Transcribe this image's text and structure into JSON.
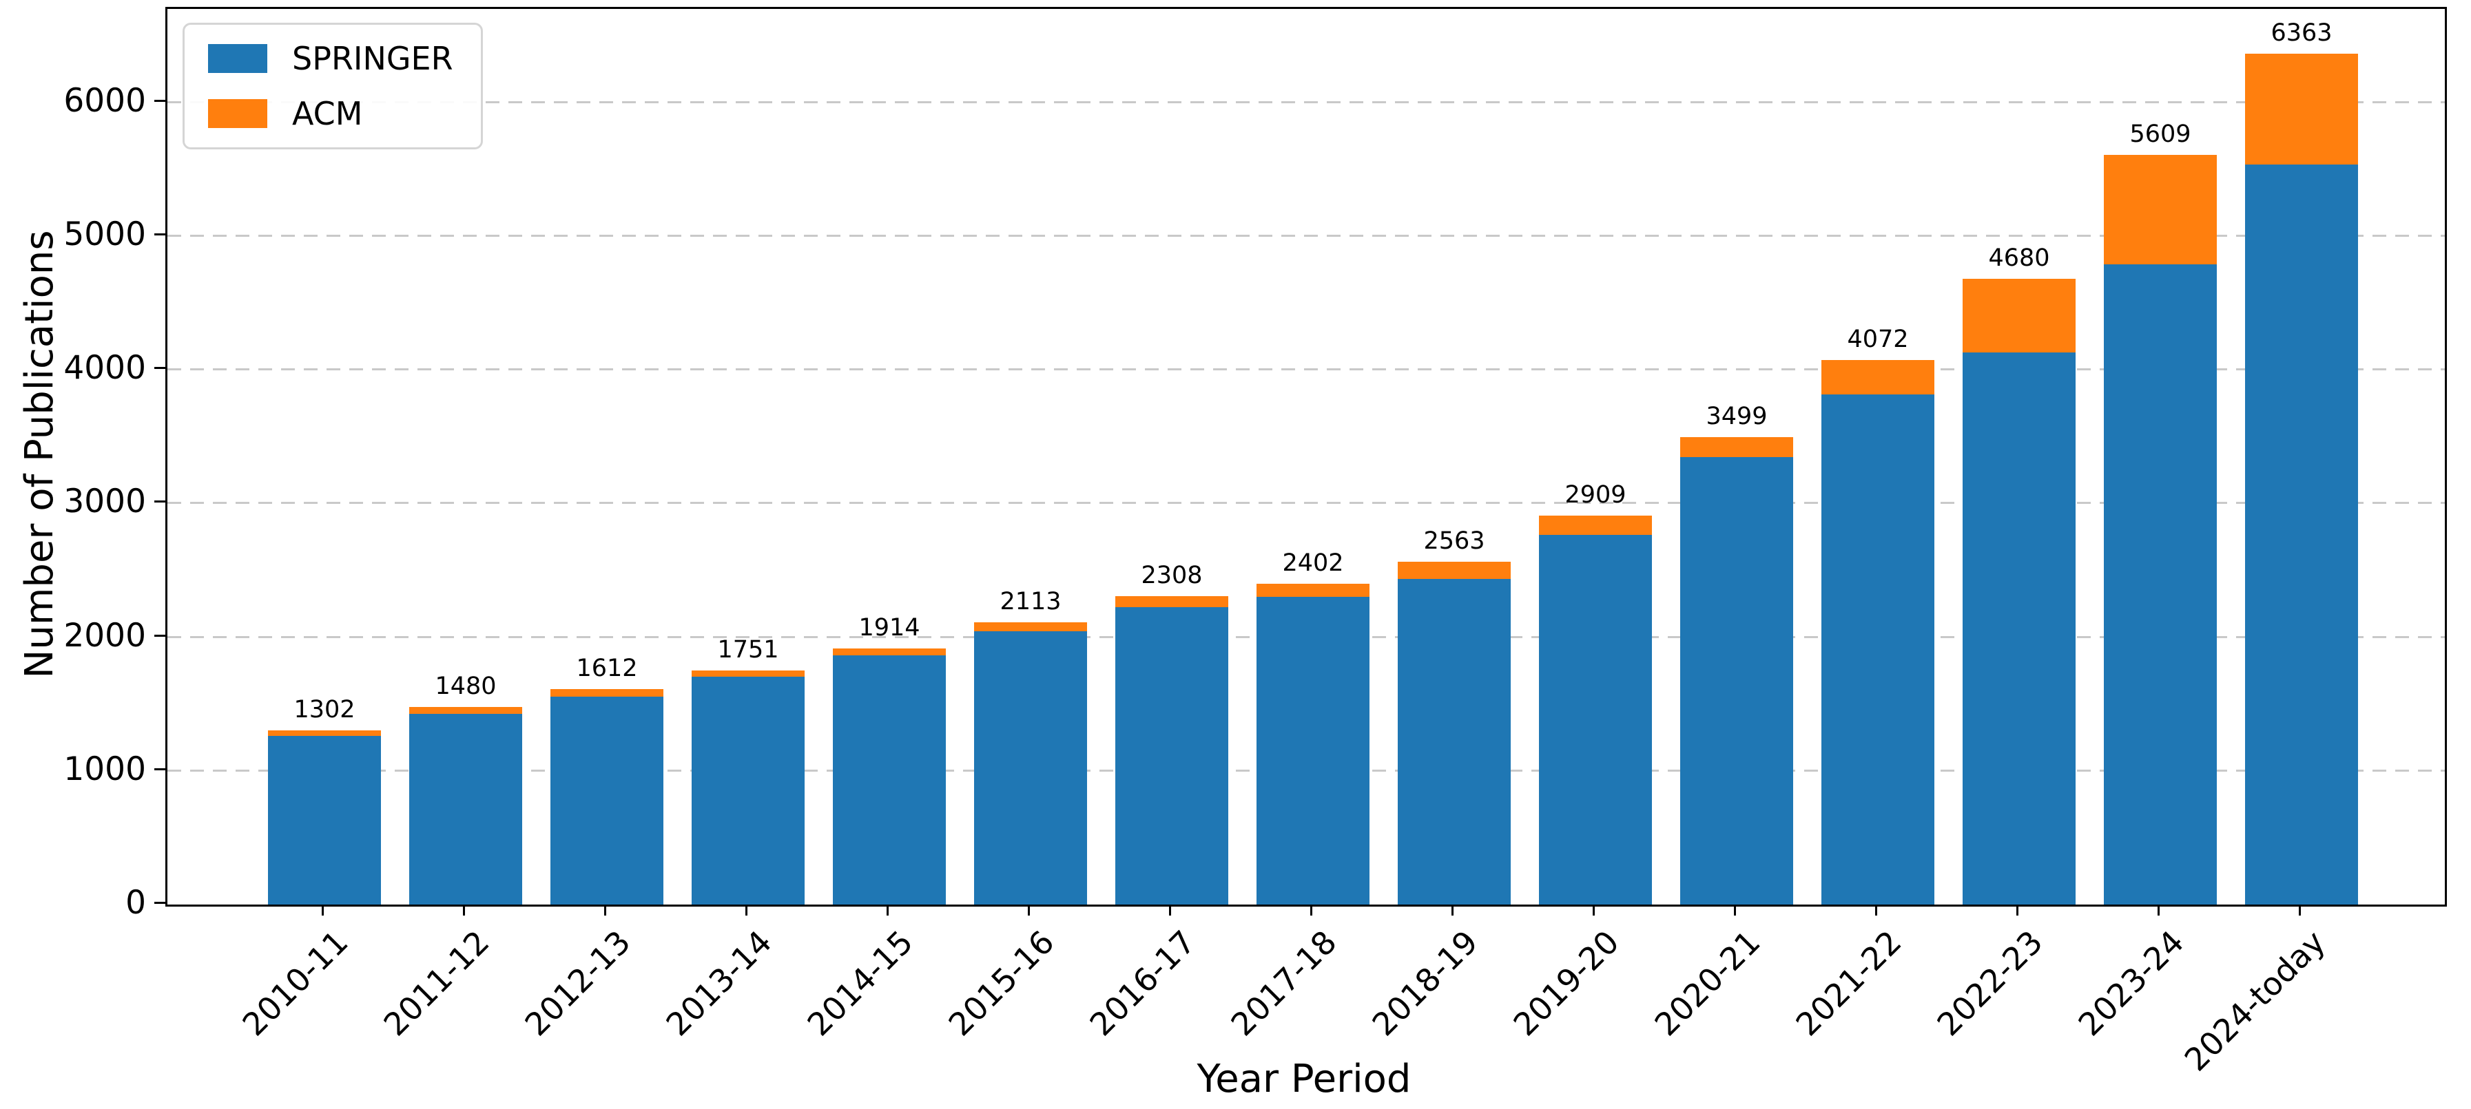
{
  "figure_title": "",
  "axes": {
    "xlabel": "Year Period",
    "ylabel": "Number of Publications"
  },
  "legend": {
    "items": [
      {
        "label": "SPRINGER",
        "color": "#1f77b4"
      },
      {
        "label": "ACM",
        "color": "#ff7f0e"
      }
    ]
  },
  "colors": {
    "springer": "#1f77b4",
    "acm": "#ff7f0e",
    "grid": "#c9c9c9",
    "spine": "#000000",
    "background": "#ffffff"
  },
  "chart_data": {
    "type": "bar",
    "stacked": true,
    "title": "",
    "xlabel": "Year Period",
    "ylabel": "Number of Publications",
    "categories": [
      "2010-11",
      "2011-12",
      "2012-13",
      "2013-14",
      "2014-15",
      "2015-16",
      "2016-17",
      "2017-18",
      "2018-19",
      "2019-20",
      "2020-21",
      "2021-22",
      "2022-23",
      "2023-24",
      "2024-today"
    ],
    "series": [
      {
        "name": "SPRINGER",
        "color": "#1f77b4",
        "values": [
          1262,
          1425,
          1557,
          1705,
          1864,
          2043,
          2223,
          2304,
          2438,
          2766,
          3347,
          3814,
          4130,
          4791,
          5538
        ]
      },
      {
        "name": "ACM",
        "color": "#ff7f0e",
        "values": [
          40,
          55,
          55,
          46,
          50,
          70,
          85,
          98,
          125,
          143,
          152,
          258,
          550,
          818,
          825
        ]
      }
    ],
    "totals": [
      1302,
      1480,
      1612,
      1751,
      1914,
      2113,
      2308,
      2402,
      2563,
      2909,
      3499,
      4072,
      4680,
      5609,
      6363
    ],
    "bar_total_labels": [
      "1302",
      "1480",
      "1612",
      "1751",
      "1914",
      "2113",
      "2308",
      "2402",
      "2563",
      "2909",
      "3499",
      "4072",
      "4680",
      "5609",
      "6363"
    ],
    "ylim": [
      0,
      6700
    ],
    "yticks": [
      0,
      1000,
      2000,
      3000,
      4000,
      5000,
      6000
    ],
    "grid": "horizontal dashed",
    "legend_position": "upper left",
    "xtick_rotation": 45
  }
}
